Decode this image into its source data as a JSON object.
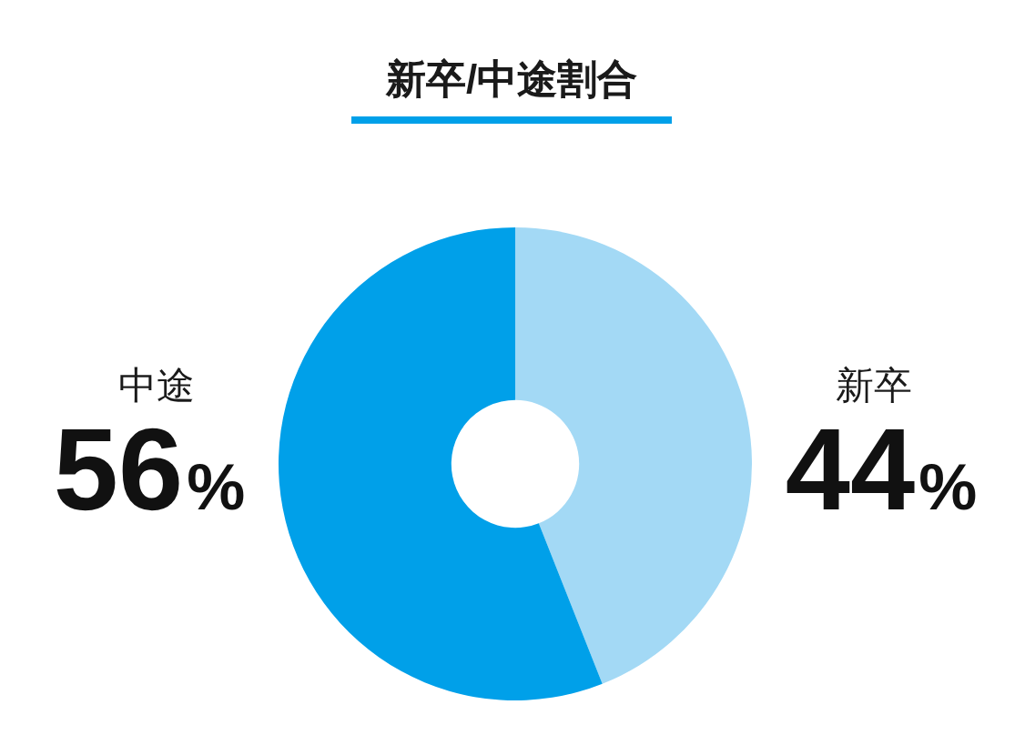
{
  "chart_data": {
    "type": "donut",
    "title": "新卒/中途割合",
    "categories": [
      "新卒",
      "中途"
    ],
    "values": [
      44,
      56
    ],
    "colors": [
      "#a3d9f5",
      "#00a0e9"
    ],
    "value_labels": [
      "44%",
      "56%"
    ]
  }
}
